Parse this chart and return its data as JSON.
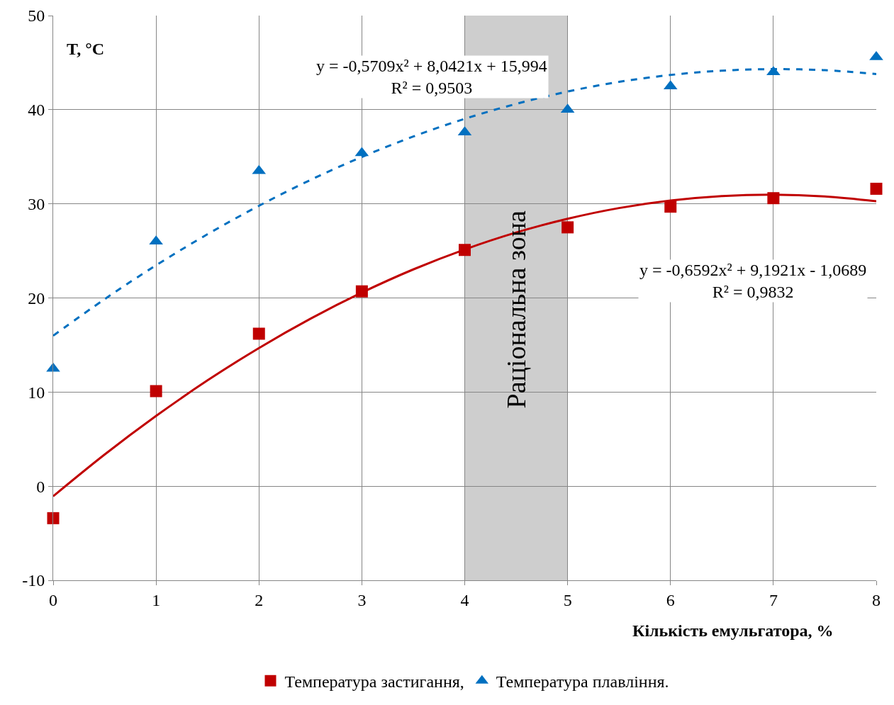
{
  "chart_data": {
    "type": "scatter",
    "xlabel": "Кількість емульгатора, %",
    "ylabel": "T, °C",
    "xlim": [
      0,
      8
    ],
    "xticks": [
      0,
      1,
      2,
      3,
      4,
      5,
      6,
      7,
      8
    ],
    "ylim": [
      -10,
      50
    ],
    "yticks": [
      -10,
      0,
      10,
      20,
      30,
      40,
      50
    ],
    "grid": true,
    "legend": "bottom",
    "series": [
      {
        "name": "Температура застигання,",
        "color": "#c00000",
        "marker": "square",
        "x": [
          0,
          1,
          2,
          3,
          4,
          5,
          6,
          7,
          8
        ],
        "values": [
          -3.4,
          10.1,
          16.2,
          20.7,
          25.1,
          27.5,
          29.7,
          30.6,
          31.6
        ]
      },
      {
        "name": "Температура плавління.",
        "color": "#0070c0",
        "marker": "triangle",
        "x": [
          0,
          1,
          2,
          3,
          4,
          5,
          6,
          7,
          8
        ],
        "values": [
          12.5,
          26.0,
          33.5,
          35.4,
          37.6,
          40.0,
          42.5,
          44.0,
          45.6
        ]
      },
      {
        "type": "line",
        "color": "#c00000",
        "line_style": "solid",
        "x": [
          0,
          0.5,
          1,
          1.5,
          2,
          2.5,
          3,
          3.5,
          4,
          4.5,
          5,
          5.5,
          6,
          6.5,
          7,
          7.5,
          8
        ],
        "values": [
          -1.07,
          3.36,
          7.46,
          11.24,
          14.68,
          17.79,
          20.57,
          23.03,
          25.15,
          26.95,
          28.41,
          29.55,
          30.35,
          30.83,
          30.98,
          30.79,
          30.28
        ]
      },
      {
        "type": "line",
        "color": "#0070c0",
        "line_style": "dashed",
        "x": [
          0,
          0.5,
          1,
          1.5,
          2,
          2.5,
          3,
          3.5,
          4,
          4.5,
          5,
          5.5,
          6,
          6.5,
          7,
          7.5,
          8
        ],
        "values": [
          15.99,
          19.87,
          23.47,
          26.77,
          29.79,
          32.53,
          34.98,
          37.15,
          39.03,
          40.62,
          41.93,
          42.96,
          43.69,
          44.15,
          44.31,
          44.2,
          43.79
        ]
      }
    ],
    "bands": [
      {
        "axis": "x",
        "from": 4,
        "to": 5,
        "label": "Раціональна зона",
        "color": "#a6a6a6"
      }
    ],
    "annotations": [
      "y = -0,5709x² + 8,0421x + 15,994\nR² = 0,9503",
      "y = -0,6592x² + 9,1921x - 1,0689\nR² = 0,9832"
    ]
  }
}
